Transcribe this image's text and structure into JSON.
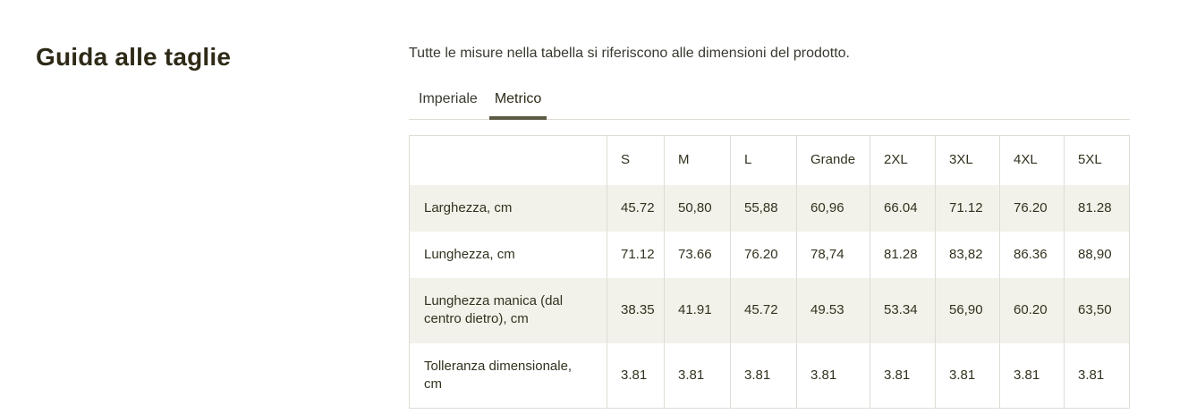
{
  "page": {
    "title": "Guida alle taglie",
    "description": "Tutte le misure nella tabella si riferiscono alle dimensioni del prodotto."
  },
  "tabs": {
    "imperial_label": "Imperiale",
    "metric_label": "Metrico",
    "active_tab": "Metrico"
  },
  "table": {
    "headers": [
      "",
      "S",
      "M",
      "L",
      "Grande",
      "2XL",
      "3XL",
      "4XL",
      "5XL"
    ],
    "rows": [
      {
        "label": "Larghezza, cm",
        "values": [
          "45.72",
          "50,80",
          "55,88",
          "60,96",
          "66.04",
          "71.12",
          "76.20",
          "81.28"
        ]
      },
      {
        "label": "Lunghezza, cm",
        "values": [
          "71.12",
          "73.66",
          "76.20",
          "78,74",
          "81.28",
          "83,82",
          "86.36",
          "88,90"
        ]
      },
      {
        "label": "Lunghezza manica (dal centro dietro), cm",
        "values": [
          "38.35",
          "41.91",
          "45.72",
          "49.53",
          "53.34",
          "56,90",
          "60.20",
          "63,50"
        ]
      },
      {
        "label": "Tolleranza dimensionale, cm",
        "values": [
          "3.81",
          "3.81",
          "3.81",
          "3.81",
          "3.81",
          "3.81",
          "3.81",
          "3.81"
        ]
      }
    ]
  },
  "colors": {
    "heading_text": "#2e2a17",
    "body_text": "#3a3930",
    "active_tab_underline": "#5c5a44",
    "row_stripe": "#f3f2ea",
    "table_border": "#dedcd4"
  }
}
